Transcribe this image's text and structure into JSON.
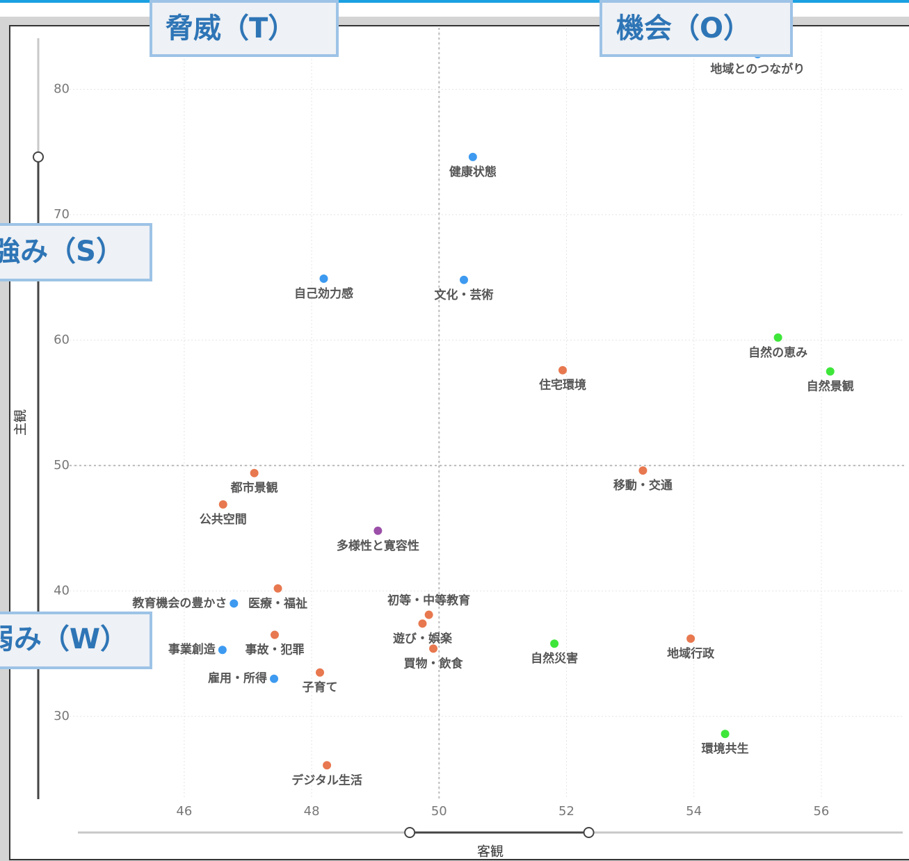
{
  "chart_data": {
    "type": "scatter",
    "x_label": "客観",
    "y_label": "主観",
    "quadrant_labels": [
      "脅威（T）",
      "機会（O）",
      "強み（S）",
      "弱み（W）"
    ],
    "xlim": [
      44.2,
      57.3
    ],
    "ylim": [
      23.4,
      84.9
    ],
    "xticks": [
      46,
      48,
      50,
      52,
      54,
      56
    ],
    "yticks": [
      30,
      40,
      50,
      60,
      70,
      80
    ],
    "grid": true,
    "reference_x": 50,
    "reference_y": 50,
    "x_range_slider": [
      49.54,
      52.35
    ],
    "y_range_slider": [
      23.4,
      74.6
    ],
    "series": [
      {
        "name": "地域とのつながり",
        "color": "#3d9af0",
        "x": 55.0,
        "y": 82.8
      },
      {
        "name": "健康状態",
        "color": "#3d9af0",
        "x": 50.53,
        "y": 74.6
      },
      {
        "name": "自己効力感",
        "color": "#3d9af0",
        "x": 48.19,
        "y": 64.9
      },
      {
        "name": "文化・芸術",
        "color": "#3d9af0",
        "x": 50.39,
        "y": 64.8
      },
      {
        "name": "自然の恵み",
        "color": "#3ee63a",
        "x": 55.32,
        "y": 60.2
      },
      {
        "name": "自然景観",
        "color": "#3ee63a",
        "x": 56.14,
        "y": 57.5
      },
      {
        "name": "住宅環境",
        "color": "#e8784f",
        "x": 51.94,
        "y": 57.6
      },
      {
        "name": "都市景観",
        "color": "#e8784f",
        "x": 47.1,
        "y": 49.4
      },
      {
        "name": "移動・交通",
        "color": "#e8784f",
        "x": 53.2,
        "y": 49.6
      },
      {
        "name": "公共空間",
        "color": "#e8784f",
        "x": 46.61,
        "y": 46.9
      },
      {
        "name": "多様性と寛容性",
        "color": "#9b4fa8",
        "x": 49.04,
        "y": 44.8
      },
      {
        "name": "医療・福祉",
        "color": "#e8784f",
        "x": 47.47,
        "y": 40.2
      },
      {
        "name": "教育機会の豊かさ",
        "color": "#3d9af0",
        "x": 46.78,
        "y": 39.0
      },
      {
        "name": "初等・中等教育",
        "color": "#e8784f",
        "x": 49.84,
        "y": 38.1
      },
      {
        "name": "遊び・娯楽",
        "color": "#e8784f",
        "x": 49.74,
        "y": 37.4
      },
      {
        "name": "事故・犯罪",
        "color": "#e8784f",
        "x": 47.42,
        "y": 36.5
      },
      {
        "name": "自然災害",
        "color": "#3ee63a",
        "x": 51.81,
        "y": 35.8
      },
      {
        "name": "地域行政",
        "color": "#e8784f",
        "x": 53.95,
        "y": 36.2
      },
      {
        "name": "買物・飲食",
        "color": "#e8784f",
        "x": 49.91,
        "y": 35.4
      },
      {
        "name": "事業創造",
        "color": "#3d9af0",
        "x": 46.6,
        "y": 35.3
      },
      {
        "name": "子育て",
        "color": "#e8784f",
        "x": 48.13,
        "y": 33.5
      },
      {
        "name": "雇用・所得",
        "color": "#3d9af0",
        "x": 47.41,
        "y": 33.0
      },
      {
        "name": "環境共生",
        "color": "#3ee63a",
        "x": 54.49,
        "y": 28.6
      },
      {
        "name": "デジタル生活",
        "color": "#e8784f",
        "x": 48.24,
        "y": 26.1
      }
    ]
  }
}
